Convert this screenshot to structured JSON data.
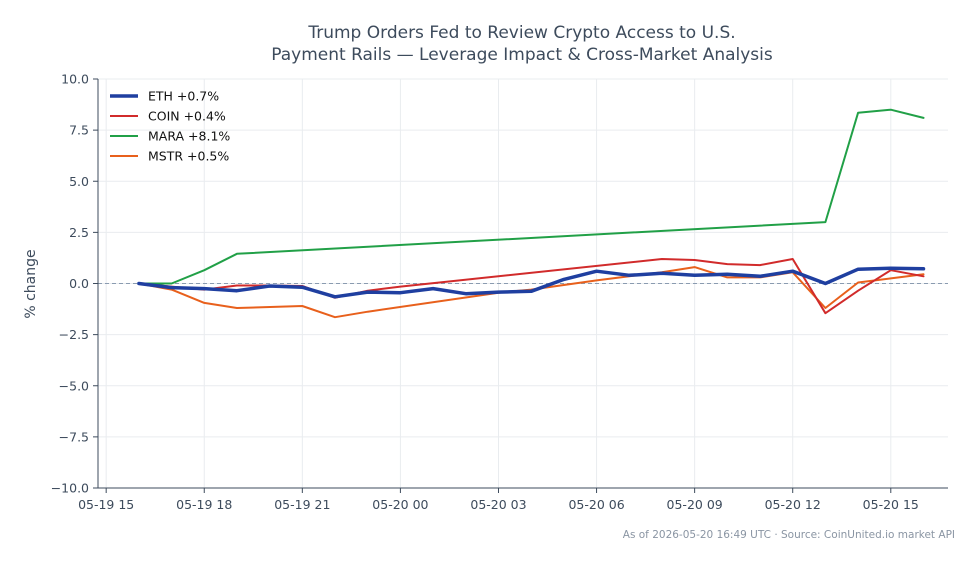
{
  "chart_data": {
    "type": "line",
    "title_lines": [
      "Trump Orders Fed to Review Crypto Access to U.S.",
      "Payment Rails — Leverage Impact & Cross-Market Analysis"
    ],
    "xlabel": "",
    "ylabel": "% change",
    "ylim": [
      -10,
      10
    ],
    "y_ticks": [
      {
        "value": 10,
        "label": "10.0"
      },
      {
        "value": 7.5,
        "label": "7.5"
      },
      {
        "value": 5,
        "label": "5.0"
      },
      {
        "value": 2.5,
        "label": "2.5"
      },
      {
        "value": 0,
        "label": "0.0"
      },
      {
        "value": -2.5,
        "label": "−2.5"
      },
      {
        "value": -5,
        "label": "−5.0"
      },
      {
        "value": -7.5,
        "label": "−7.5"
      },
      {
        "value": -10,
        "label": "−10.0"
      }
    ],
    "x_unit": "hour",
    "xlim": [
      "2026-05-19 14:45",
      "2026-05-20 16:45"
    ],
    "x_ticks": [
      {
        "value": "2026-05-19 15:00",
        "label": "05-19 15"
      },
      {
        "value": "2026-05-19 18:00",
        "label": "05-19 18"
      },
      {
        "value": "2026-05-19 21:00",
        "label": "05-19 21"
      },
      {
        "value": "2026-05-20 00:00",
        "label": "05-20 00"
      },
      {
        "value": "2026-05-20 03:00",
        "label": "05-20 03"
      },
      {
        "value": "2026-05-20 06:00",
        "label": "05-20 06"
      },
      {
        "value": "2026-05-20 09:00",
        "label": "05-20 09"
      },
      {
        "value": "2026-05-20 12:00",
        "label": "05-20 12"
      },
      {
        "value": "2026-05-20 15:00",
        "label": "05-20 15"
      }
    ],
    "grid": true,
    "zero_line": {
      "value": 0,
      "style": "dashed",
      "color": "#8a9bb0"
    },
    "legend": {
      "position": "top-left"
    },
    "series": [
      {
        "name": "ETH +0.7%",
        "color": "#1f3fa0",
        "emphasis": "thick",
        "points": [
          [
            "2026-05-19 16:00",
            0.0
          ],
          [
            "2026-05-19 17:00",
            -0.2
          ],
          [
            "2026-05-19 18:00",
            -0.25
          ],
          [
            "2026-05-19 19:00",
            -0.35
          ],
          [
            "2026-05-19 20:00",
            -0.12
          ],
          [
            "2026-05-19 21:00",
            -0.18
          ],
          [
            "2026-05-19 22:00",
            -0.65
          ],
          [
            "2026-05-19 23:00",
            -0.42
          ],
          [
            "2026-05-20 00:00",
            -0.45
          ],
          [
            "2026-05-20 01:00",
            -0.25
          ],
          [
            "2026-05-20 02:00",
            -0.5
          ],
          [
            "2026-05-20 03:00",
            -0.42
          ],
          [
            "2026-05-20 04:00",
            -0.38
          ],
          [
            "2026-05-20 05:00",
            0.2
          ],
          [
            "2026-05-20 06:00",
            0.6
          ],
          [
            "2026-05-20 07:00",
            0.4
          ],
          [
            "2026-05-20 08:00",
            0.5
          ],
          [
            "2026-05-20 09:00",
            0.4
          ],
          [
            "2026-05-20 10:00",
            0.45
          ],
          [
            "2026-05-20 11:00",
            0.35
          ],
          [
            "2026-05-20 12:00",
            0.6
          ],
          [
            "2026-05-20 13:00",
            0.0
          ],
          [
            "2026-05-20 14:00",
            0.7
          ],
          [
            "2026-05-20 15:00",
            0.75
          ],
          [
            "2026-05-20 16:00",
            0.72
          ]
        ]
      },
      {
        "name": "COIN +0.4%",
        "color": "#d12b2b",
        "emphasis": "normal",
        "points": [
          [
            "2026-05-19 16:00",
            0.0
          ],
          [
            "2026-05-19 17:00",
            -0.15
          ],
          [
            "2026-05-19 18:00",
            -0.3
          ],
          [
            "2026-05-19 19:00",
            -0.1
          ],
          [
            "2026-05-19 20:00",
            -0.1
          ],
          [
            "2026-05-19 21:00",
            -0.12
          ],
          [
            "2026-05-19 22:00",
            -0.7
          ],
          [
            "2026-05-19 23:00",
            -0.35
          ],
          [
            "2026-05-20 00:00",
            -0.15
          ],
          [
            "2026-05-20 09:00",
            1.15
          ],
          [
            "2026-05-20 08:00",
            1.2
          ],
          [
            "2026-05-20 10:00",
            0.95
          ],
          [
            "2026-05-20 11:00",
            0.9
          ],
          [
            "2026-05-20 12:00",
            1.2
          ],
          [
            "2026-05-20 13:00",
            -1.45
          ],
          [
            "2026-05-20 14:00",
            -0.35
          ],
          [
            "2026-05-20 15:00",
            0.65
          ],
          [
            "2026-05-20 16:00",
            0.35
          ]
        ]
      },
      {
        "name": "MARA +8.1%",
        "color": "#21a047",
        "emphasis": "normal",
        "points": [
          [
            "2026-05-19 16:00",
            0.0
          ],
          [
            "2026-05-19 17:00",
            0.0
          ],
          [
            "2026-05-19 18:00",
            0.65
          ],
          [
            "2026-05-19 19:00",
            1.45
          ],
          [
            "2026-05-20 13:00",
            3.0
          ],
          [
            "2026-05-20 14:00",
            8.35
          ],
          [
            "2026-05-20 15:00",
            8.5
          ],
          [
            "2026-05-20 16:00",
            8.1
          ]
        ]
      },
      {
        "name": "MSTR +0.5%",
        "color": "#e8601c",
        "emphasis": "normal",
        "points": [
          [
            "2026-05-19 16:00",
            0.0
          ],
          [
            "2026-05-19 17:00",
            -0.3
          ],
          [
            "2026-05-19 18:00",
            -0.95
          ],
          [
            "2026-05-19 19:00",
            -1.2
          ],
          [
            "2026-05-19 21:00",
            -1.1
          ],
          [
            "2026-05-19 22:00",
            -1.65
          ],
          [
            "2026-05-19 23:00",
            -1.38
          ],
          [
            "2026-05-20 03:00",
            -0.45
          ],
          [
            "2026-05-20 04:00",
            -0.3
          ],
          [
            "2026-05-20 06:00",
            0.15
          ],
          [
            "2026-05-20 07:00",
            0.35
          ],
          [
            "2026-05-20 08:00",
            0.55
          ],
          [
            "2026-05-20 09:00",
            0.8
          ],
          [
            "2026-05-20 10:00",
            0.3
          ],
          [
            "2026-05-20 11:00",
            0.3
          ],
          [
            "2026-05-20 12:00",
            0.55
          ],
          [
            "2026-05-20 13:00",
            -1.2
          ],
          [
            "2026-05-20 14:00",
            0.05
          ],
          [
            "2026-05-20 15:00",
            0.25
          ],
          [
            "2026-05-20 16:00",
            0.45
          ]
        ]
      }
    ],
    "footer": "As of 2026-05-20 16:49 UTC · Source: CoinUnited.io market API"
  }
}
